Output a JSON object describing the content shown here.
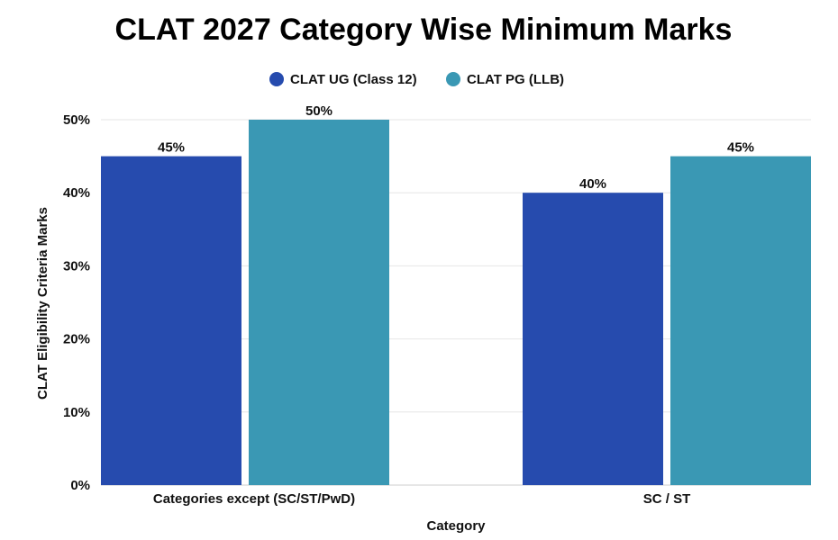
{
  "chart_data": {
    "type": "bar",
    "title": "CLAT 2027 Category Wise Minimum Marks",
    "xlabel": "Category",
    "ylabel": "CLAT Eligibility Criteria Marks",
    "categories": [
      "Categories except (SC/ST/PwD)",
      "SC / ST"
    ],
    "series": [
      {
        "name": "CLAT UG (Class 12)",
        "values": [
          45,
          40
        ],
        "color": "#264BAE",
        "labels": [
          "45%",
          "40%"
        ]
      },
      {
        "name": "CLAT PG (LLB)",
        "values": [
          50,
          45
        ],
        "color": "#3A98B4",
        "labels": [
          "50%",
          "45%"
        ]
      }
    ],
    "ylim": [
      0,
      50
    ],
    "yticks": [
      0,
      10,
      20,
      30,
      40,
      50
    ],
    "ytick_labels": [
      "0%",
      "10%",
      "20%",
      "30%",
      "40%",
      "50%"
    ],
    "grid": true,
    "legend": "top-center"
  }
}
